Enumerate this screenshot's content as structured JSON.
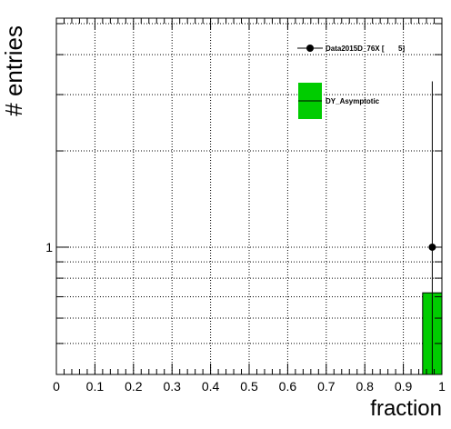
{
  "chart_data": {
    "type": "histogram",
    "xlabel": "fraction",
    "ylabel": "# entries",
    "xlim": [
      0,
      1
    ],
    "ylim": [
      0.4,
      5.2
    ],
    "yscale": "log",
    "grid": true,
    "x_ticks": [
      "0",
      "0.1",
      "0.2",
      "0.3",
      "0.4",
      "0.5",
      "0.6",
      "0.7",
      "0.8",
      "0.9",
      "1"
    ],
    "y_ticks": [
      "1"
    ],
    "legend_position": "top-right",
    "series": [
      {
        "name": "Data2015D_76X [       5]",
        "style": "points-with-errors",
        "color": "#000000",
        "points": [
          {
            "x": 0.975,
            "y": 1,
            "err_low": 1,
            "err_high": 2.3
          }
        ]
      },
      {
        "name": "DY_Asymptotic",
        "style": "filled-histogram",
        "color": "#00cc00",
        "bins": [
          {
            "x_low": 0.95,
            "x_high": 1.0,
            "value": 0.72
          }
        ]
      }
    ]
  }
}
